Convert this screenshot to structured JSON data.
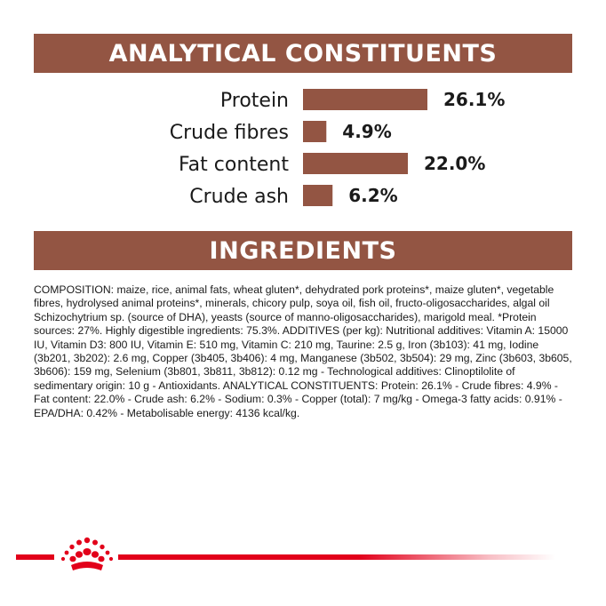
{
  "analytical": {
    "heading": "ANALYTICAL CONSTITUENTS"
  },
  "ingredients": {
    "heading": "INGREDIENTS",
    "text": "COMPOSITION: maize, rice, animal fats, wheat gluten*, dehydrated pork proteins*, maize gluten*, vegetable fibres, hydrolysed animal proteins*, minerals, chicory pulp, soya oil, fish oil, fructo-oligosaccharides, algal oil Schizochytrium sp. (source of DHA), yeasts (source of manno-oligosaccharides), marigold meal. *Protein sources: 27%. Highly digestible ingredients: 75.3%. ADDITIVES (per kg): Nutritional additives: Vitamin A: 15000 IU, Vitamin D3: 800 IU, Vitamin E: 510 mg, Vitamin C: 210 mg, Taurine: 2.5 g, Iron (3b103): 41 mg, Iodine (3b201, 3b202): 2.6 mg, Copper (3b405, 3b406): 4 mg, Manganese (3b502, 3b504): 29 mg, Zinc (3b603, 3b605, 3b606): 159 mg, Selenium (3b801, 3b811, 3b812): 0.12 mg - Technological additives: Clinoptilolite of sedimentary origin: 10 g - Antioxidants. ANALYTICAL CONSTITUENTS: Protein: 26.1% - Crude fibres: 4.9% - Fat content: 22.0% - Crude ash: 6.2% - Sodium: 0.3% - Copper (total): 7 mg/kg - Omega-3 fatty acids: 0.91% - EPA/DHA: 0.42% - Metabolisable energy: 4136 kcal/kg."
  },
  "chart_data": {
    "type": "bar",
    "orientation": "horizontal",
    "title": "ANALYTICAL CONSTITUENTS",
    "categories": [
      "Protein",
      "Crude fibres",
      "Fat content",
      "Crude ash"
    ],
    "values": [
      26.1,
      4.9,
      22.0,
      6.2
    ],
    "value_labels": [
      "26.1%",
      "4.9%",
      "22.0%",
      "6.2%"
    ],
    "unit": "%",
    "xlim": [
      0,
      26.1
    ],
    "grid": false,
    "bar_color": "#935543"
  },
  "colors": {
    "brand_red": "#e2001a",
    "banner_brown": "#935543"
  },
  "logo": {
    "icon": "royal-canin-crown-icon"
  }
}
